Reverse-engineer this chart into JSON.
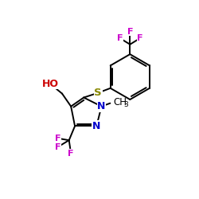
{
  "background": "#ffffff",
  "bond_color": "#000000",
  "atom_colors": {
    "F": "#cc00cc",
    "N": "#0000cc",
    "O": "#cc0000",
    "S": "#888800",
    "C": "#000000",
    "H": "#000000"
  },
  "figsize": [
    2.5,
    2.5
  ],
  "dpi": 100
}
